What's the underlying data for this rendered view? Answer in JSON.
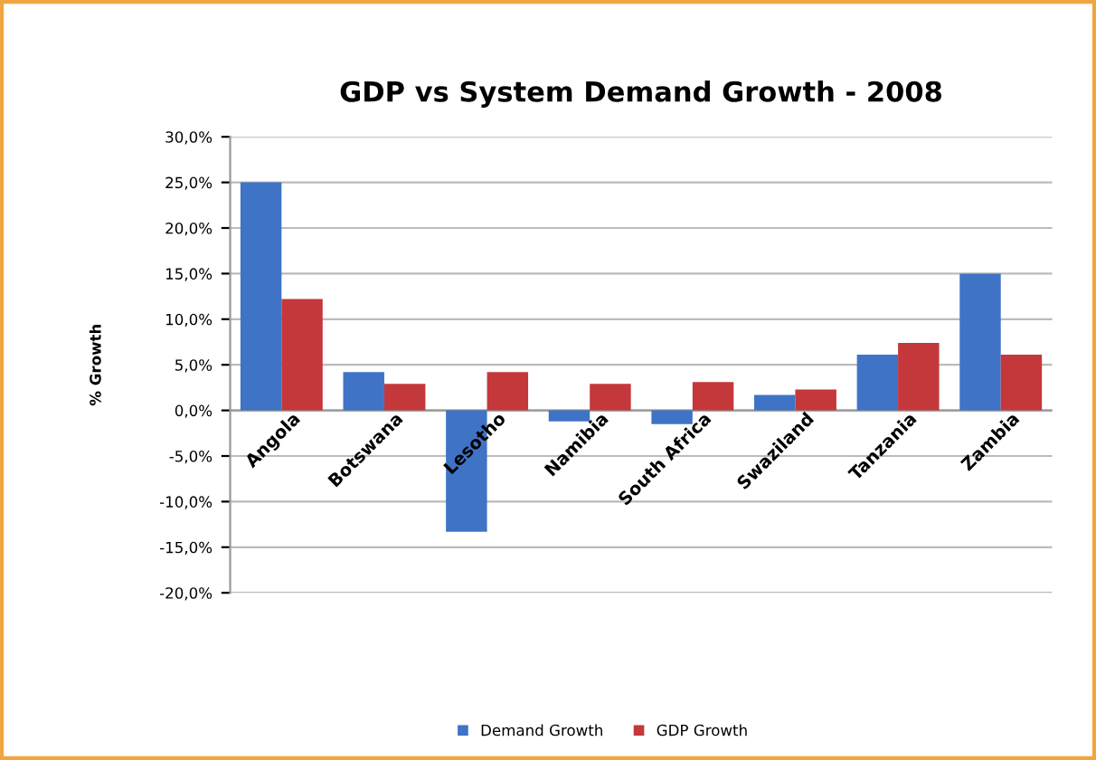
{
  "chart_data": {
    "type": "bar",
    "title": "GDP vs System Demand Growth - 2008",
    "ylabel": "% Growth",
    "categories": [
      "Angola",
      "Botswana",
      "Lesotho",
      "Namibia",
      "South Africa",
      "Swaziland",
      "Tanzania",
      "Zambia"
    ],
    "series": [
      {
        "name": "Demand Growth",
        "color": "#3f73c6",
        "values": [
          25.0,
          4.2,
          -13.3,
          -1.2,
          -1.5,
          1.7,
          6.1,
          15.0
        ]
      },
      {
        "name": "GDP Growth",
        "color": "#c4383b",
        "values": [
          12.2,
          2.9,
          4.2,
          2.9,
          3.1,
          2.3,
          7.4,
          6.1
        ]
      }
    ],
    "ylim": [
      -20,
      30
    ],
    "yticks": [
      {
        "value": -20,
        "label": "-20,0%"
      },
      {
        "value": -15,
        "label": "-15,0%"
      },
      {
        "value": -10,
        "label": "-10,0%"
      },
      {
        "value": -5,
        "label": "-5,0%"
      },
      {
        "value": 0,
        "label": "0,0%"
      },
      {
        "value": 5,
        "label": "5,0%"
      },
      {
        "value": 10,
        "label": "10,0%"
      },
      {
        "value": 15,
        "label": "15,0%"
      },
      {
        "value": 20,
        "label": "20,0%"
      },
      {
        "value": 25,
        "label": "25,0%"
      },
      {
        "value": 30,
        "label": "30,0%"
      }
    ],
    "grid": "y",
    "legend": "bottom"
  }
}
